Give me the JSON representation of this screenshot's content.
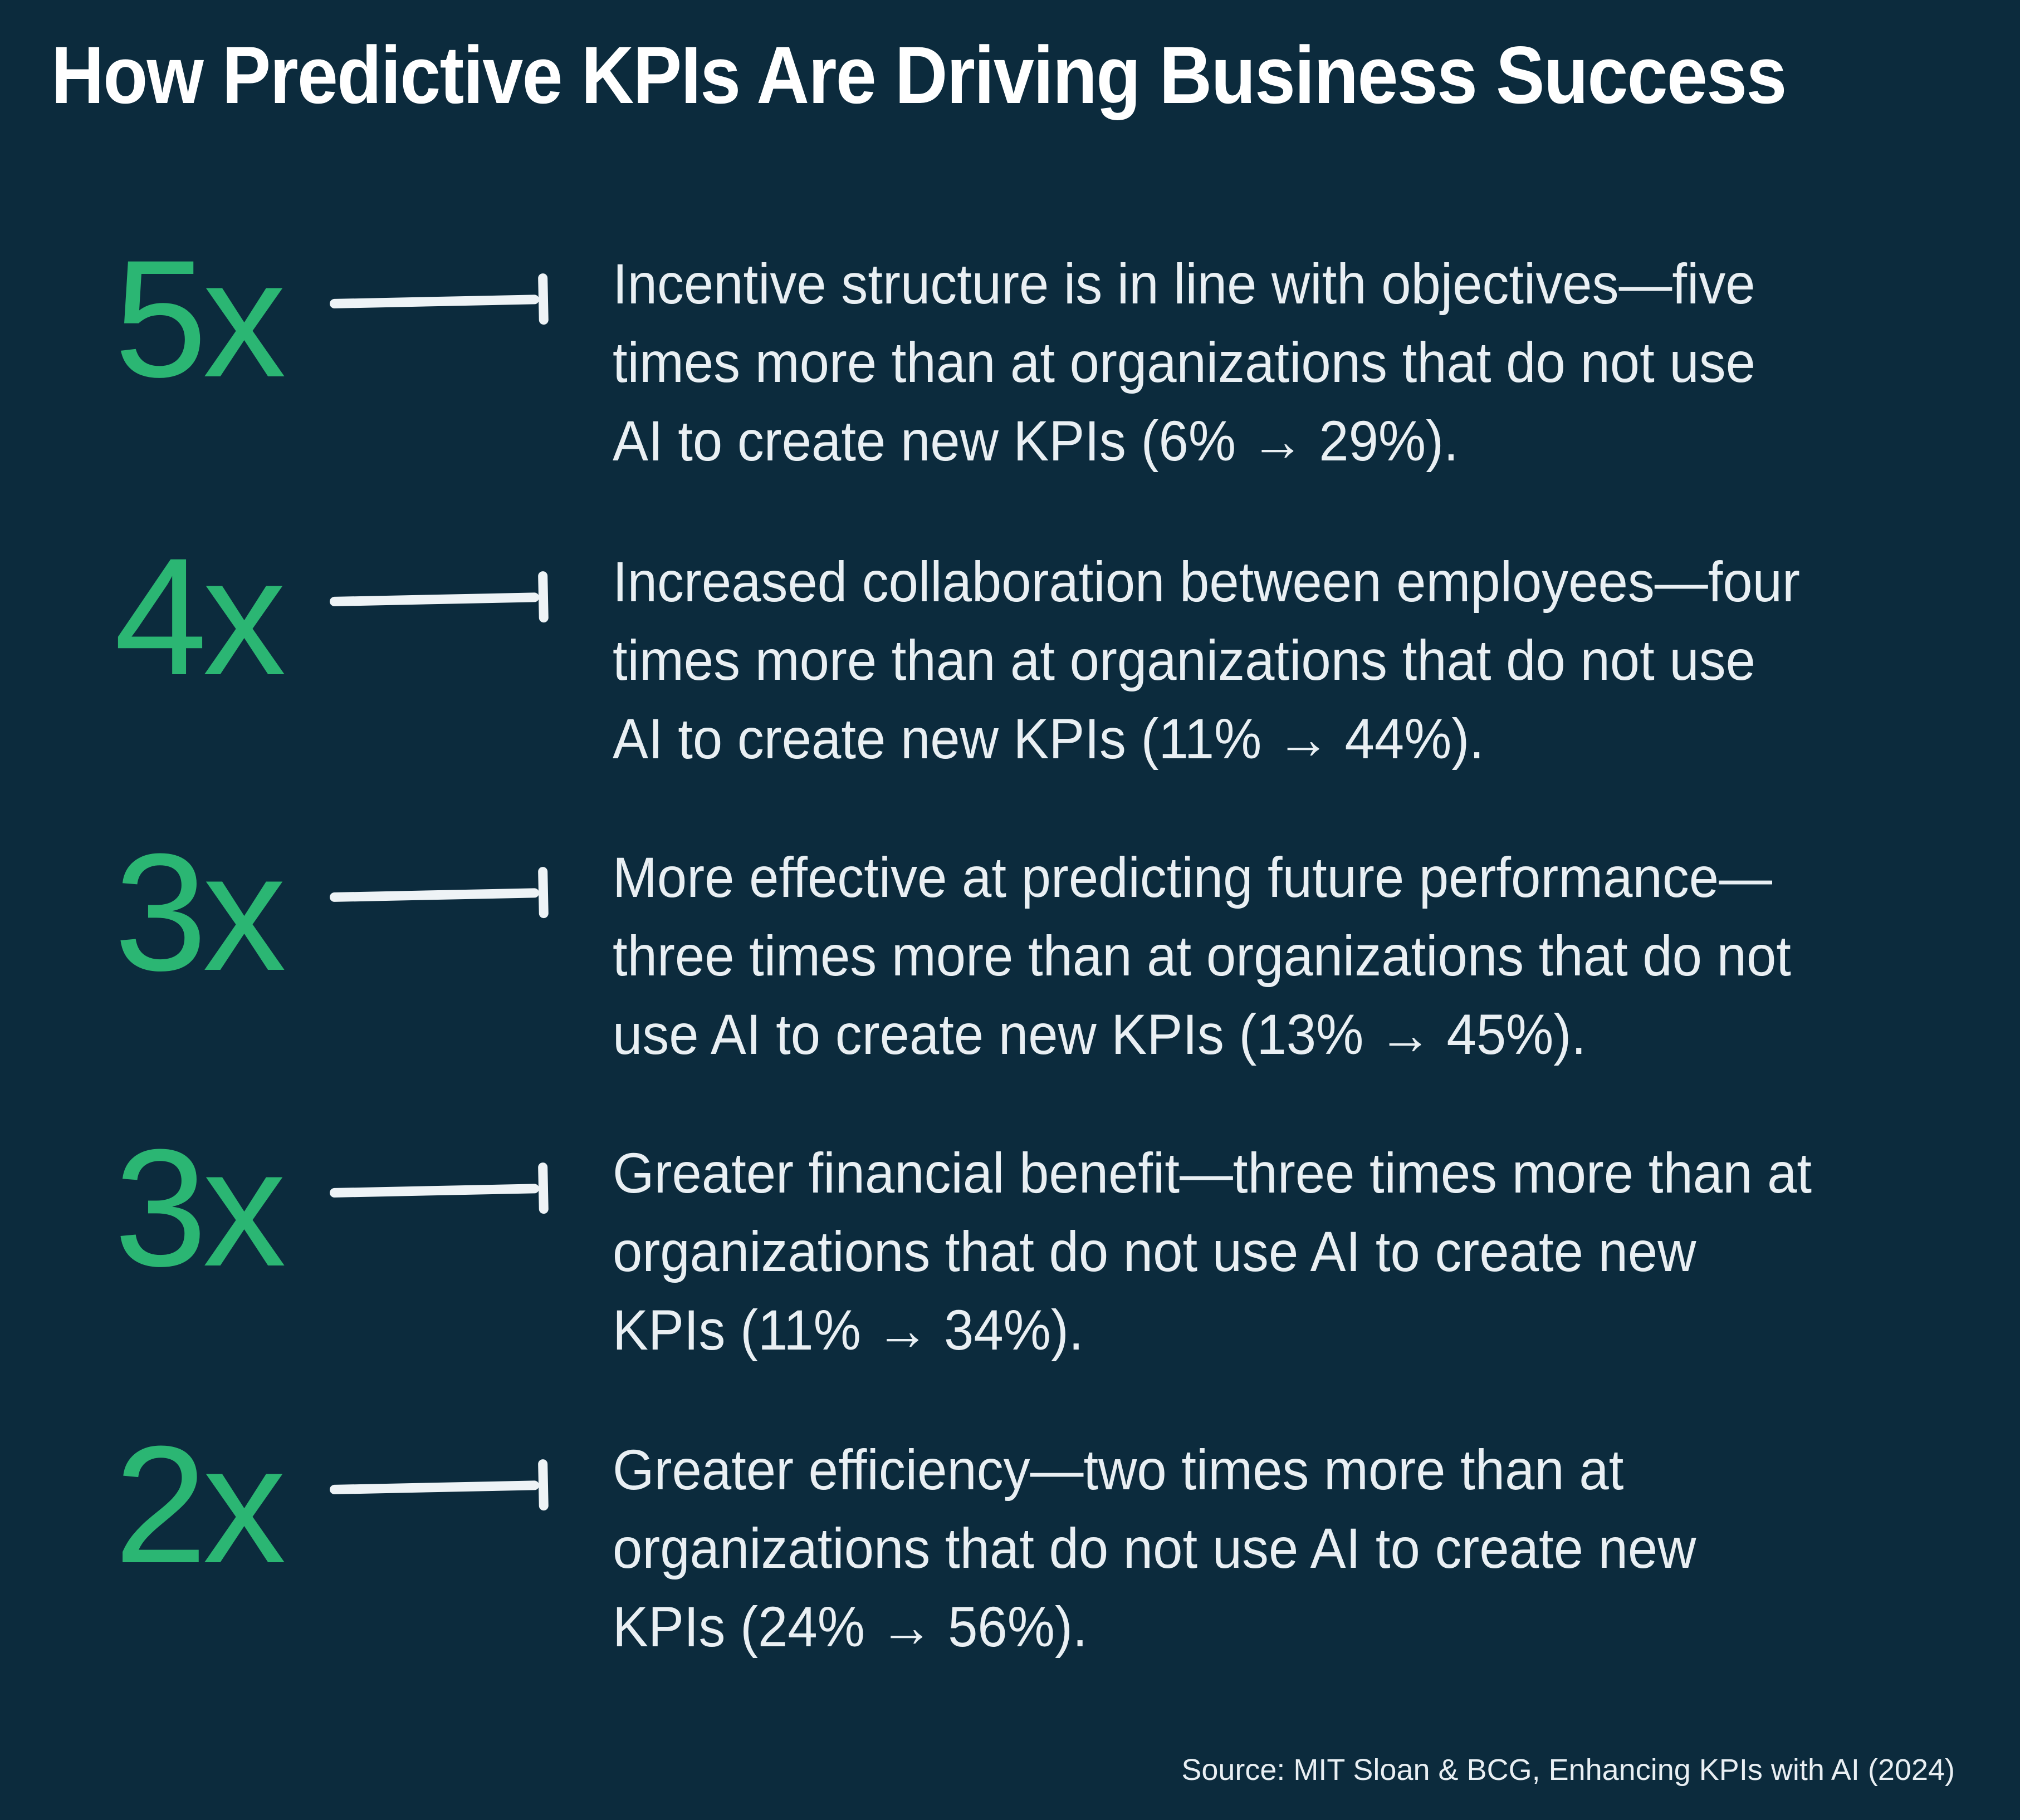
{
  "title": "How Predictive KPIs Are Driving Business Success",
  "source": "Source: MIT Sloan & BCG, Enhancing KPIs with AI (2024)",
  "colors": {
    "background": "#0c2b3d",
    "accent_green": "#2bb673",
    "text_white": "#e9eff3",
    "connector_white": "#eef3f6"
  },
  "rows": [
    {
      "multiplier": "5x",
      "stat_baseline": "6%",
      "stat_with_ai": "29%",
      "lines": [
        "Incentive structure is in line with objectives—five",
        "times more than at organizations that do not use",
        "AI to create new KPIs (6% → 29%)."
      ]
    },
    {
      "multiplier": "4x",
      "stat_baseline": "11%",
      "stat_with_ai": "44%",
      "lines": [
        "Increased collaboration between employees—four",
        "times more than at organizations that do not use",
        "AI to create new KPIs (11% → 44%)."
      ]
    },
    {
      "multiplier": "3x",
      "stat_baseline": "13%",
      "stat_with_ai": "45%",
      "lines": [
        "More effective at predicting future performance—",
        "three times more than at organizations that do not",
        "use AI to create new KPIs (13% → 45%)."
      ]
    },
    {
      "multiplier": "3x",
      "stat_baseline": "11%",
      "stat_with_ai": "34%",
      "lines": [
        "Greater financial benefit—three times more than at",
        "organizations that do not use AI to create new",
        "KPIs (11% → 34%)."
      ]
    },
    {
      "multiplier": "2x",
      "stat_baseline": "24%",
      "stat_with_ai": "56%",
      "lines": [
        "Greater efficiency—two times more than at",
        "organizations that do not use AI to create new",
        "KPIs (24% → 56%)."
      ]
    }
  ]
}
